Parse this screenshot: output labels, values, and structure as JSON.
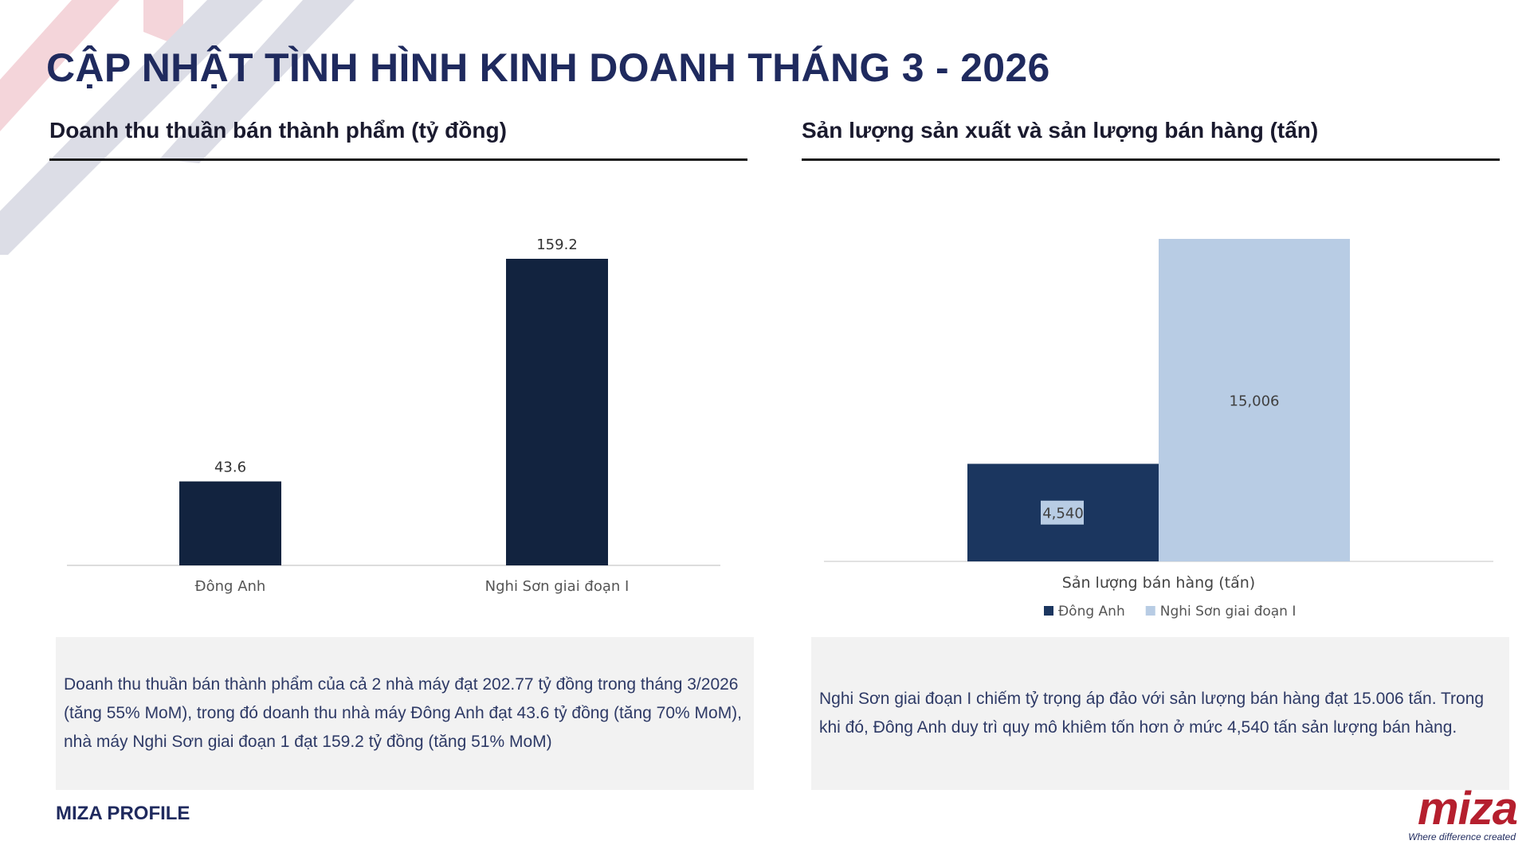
{
  "page": {
    "title": "CẬP NHẬT TÌNH HÌNH KINH DOANH THÁNG 3 - 2026",
    "footer_label": "MIZA PROFILE"
  },
  "brand": {
    "logo_text": "miza",
    "tagline": "Where difference created",
    "colors": {
      "navy": "#1f2a5e",
      "red": "#b51f2e",
      "deco_pink": "#f4d5da",
      "deco_gray": "#dcdde6"
    }
  },
  "left_panel": {
    "title": "Doanh thu thuần bán thành phẩm (tỷ đồng)",
    "description": "Doanh thu thuần bán thành phẩm của cả 2 nhà máy đạt 202.77 tỷ đồng trong tháng 3/2026 (tăng 55% MoM), trong đó doanh thu nhà máy Đông Anh đạt 43.6 tỷ đồng (tăng 70% MoM), nhà máy Nghi Sơn giai đoạn 1 đạt 159.2 tỷ đồng (tăng 51% MoM)"
  },
  "right_panel": {
    "title": "Sản lượng sản xuất và sản lượng bán hàng (tấn)",
    "description": "Nghi Sơn giai đoạn I chiếm tỷ trọng áp đảo với sản lượng bán hàng đạt 15.006 tấn. Trong khi đó, Đông Anh duy trì quy mô khiêm tốn hơn ở mức 4,540 tấn sản lượng bán hàng."
  },
  "chart_data": [
    {
      "type": "bar",
      "title": "Doanh thu thuần bán thành phẩm (tỷ đồng)",
      "categories": [
        "Đông Anh",
        "Nghi Sơn giai đoạn I"
      ],
      "values": [
        43.6,
        159.2
      ],
      "data_labels": [
        "43.6",
        "159.2"
      ],
      "ylim": [
        0,
        170
      ],
      "grid": false,
      "color": "#12233f"
    },
    {
      "type": "bar",
      "title": "Sản lượng sản xuất và sản lượng bán hàng (tấn)",
      "categories": [
        "Sản lượng bán hàng (tấn)"
      ],
      "series": [
        {
          "name": "Đông Anh",
          "values": [
            4540
          ],
          "label": "4,540",
          "color": "#1b365f"
        },
        {
          "name": "Nghi Sơn giai đoạn I",
          "values": [
            15006
          ],
          "label": "15,006",
          "color": "#b8cce4"
        }
      ],
      "ylim": [
        0,
        15006
      ],
      "grid": false,
      "legend": "bottom"
    }
  ]
}
